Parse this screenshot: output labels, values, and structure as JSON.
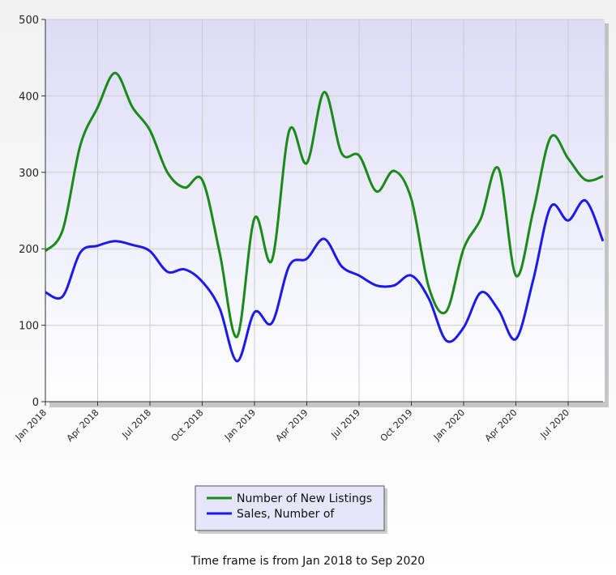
{
  "chart_data": {
    "type": "line",
    "x": [
      "Jan 2018",
      "Feb 2018",
      "Mar 2018",
      "Apr 2018",
      "May 2018",
      "Jun 2018",
      "Jul 2018",
      "Aug 2018",
      "Sep 2018",
      "Oct 2018",
      "Nov 2018",
      "Dec 2018",
      "Jan 2019",
      "Feb 2019",
      "Mar 2019",
      "Apr 2019",
      "May 2019",
      "Jun 2019",
      "Jul 2019",
      "Aug 2019",
      "Sep 2019",
      "Oct 2019",
      "Nov 2019",
      "Dec 2019",
      "Jan 2020",
      "Feb 2020",
      "Mar 2020",
      "Apr 2020",
      "May 2020",
      "Jun 2020",
      "Jul 2020",
      "Aug 2020",
      "Sep 2020"
    ],
    "xticks": [
      "Jan 2018",
      "Apr 2018",
      "Jul 2018",
      "Oct 2018",
      "Jan 2019",
      "Apr 2019",
      "Jul 2019",
      "Oct 2019",
      "Jan 2020",
      "Apr 2020",
      "Jul 2020"
    ],
    "yticks": [
      0,
      100,
      200,
      300,
      400,
      500
    ],
    "ylim": [
      0,
      500
    ],
    "grid": true,
    "legend_position": "bottom",
    "series": [
      {
        "name": "Number of New Listings",
        "color": "#1a8a1a",
        "values": [
          197,
          225,
          335,
          385,
          430,
          385,
          355,
          300,
          280,
          290,
          195,
          85,
          240,
          185,
          355,
          312,
          405,
          325,
          322,
          275,
          302,
          265,
          150,
          118,
          200,
          240,
          305,
          165,
          250,
          346,
          318,
          290,
          295
        ]
      },
      {
        "name": "Sales, Number of",
        "color": "#1a1aee",
        "values": [
          143,
          138,
          195,
          204,
          210,
          205,
          197,
          170,
          173,
          157,
          122,
          53,
          117,
          103,
          178,
          187,
          213,
          177,
          165,
          152,
          152,
          165,
          135,
          80,
          97,
          143,
          120,
          82,
          160,
          255,
          237,
          263,
          210
        ]
      }
    ]
  },
  "footer": {
    "text": "Time frame is from Jan 2018 to Sep 2020"
  }
}
